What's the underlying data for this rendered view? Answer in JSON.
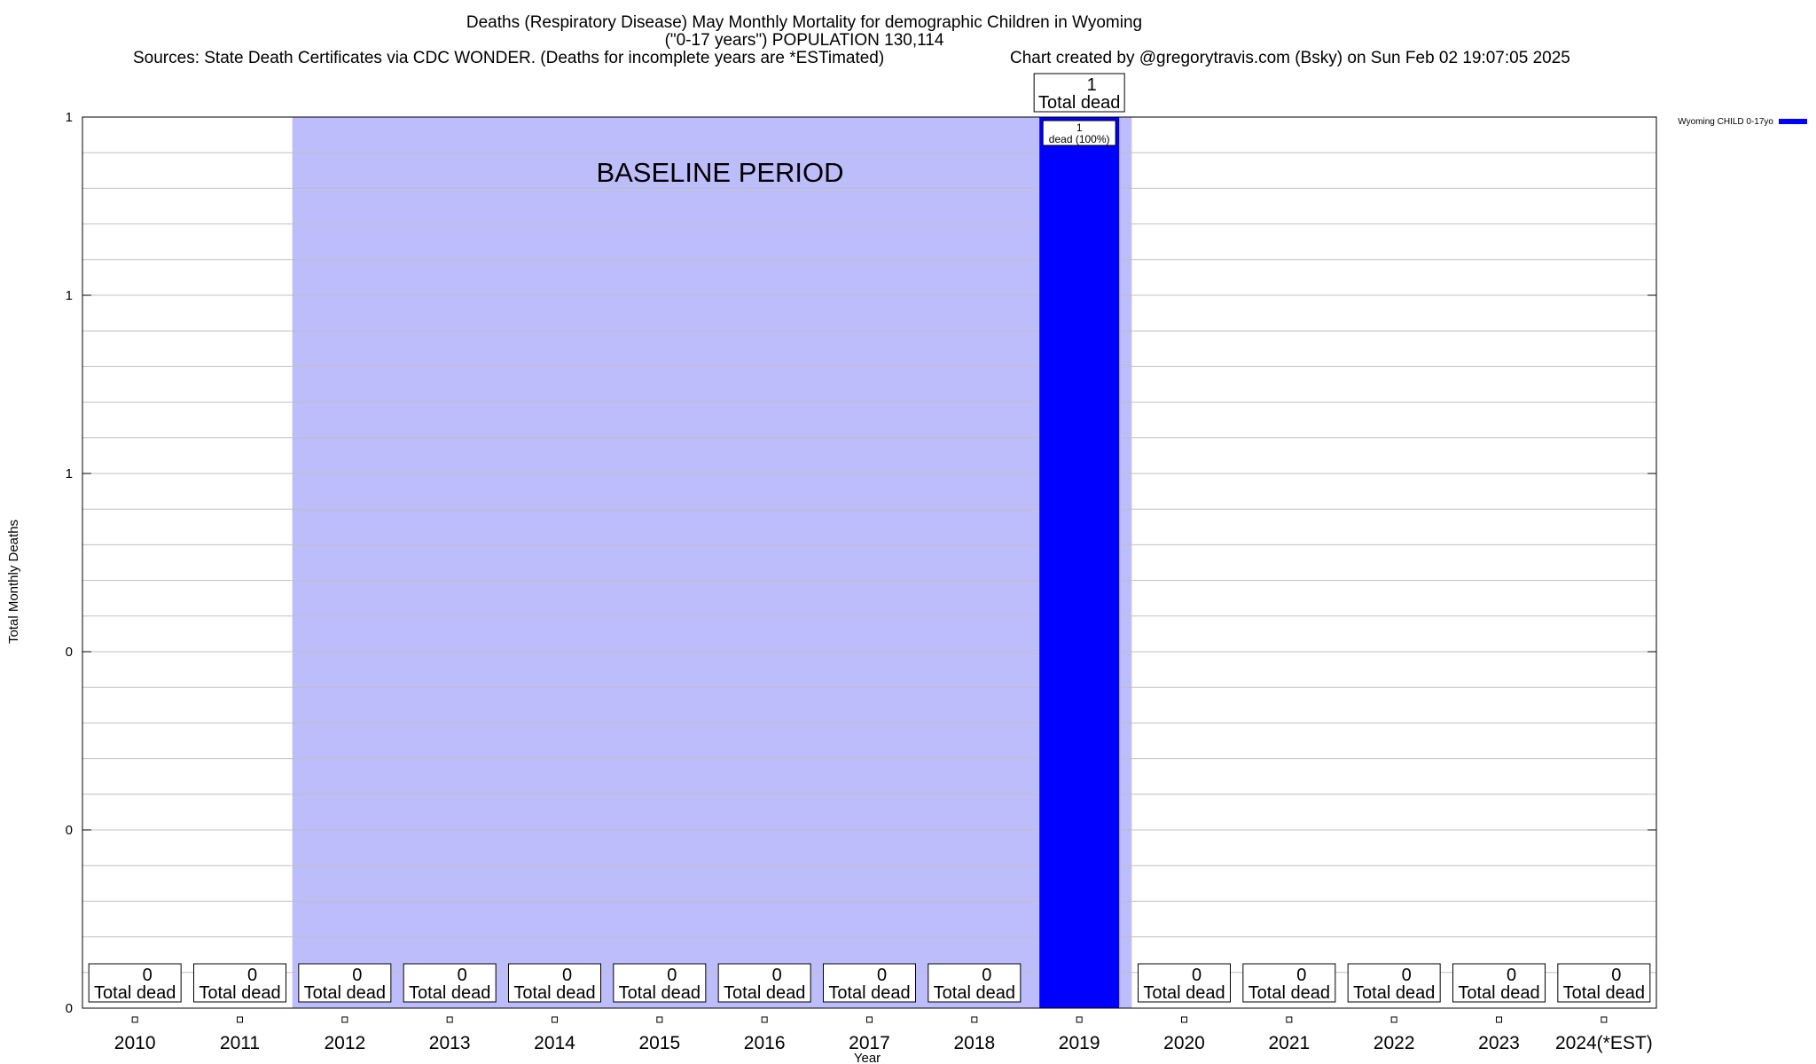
{
  "chart_data": {
    "type": "bar",
    "title_line1": "Deaths (Respiratory Disease) May Monthly Mortality for demographic Children in Wyoming",
    "title_line2": "(\"0-17 years\") POPULATION 130,114",
    "sources": "Sources: State Death Certificates via CDC WONDER. (Deaths for incomplete years are *ESTimated)",
    "credit": "Chart created by @gregorytravis.com (Bsky) on Sun Feb 02 19:07:05 2025",
    "xlabel": "Year",
    "ylabel": "Total Monthly Deaths",
    "categories": [
      "2010",
      "2011",
      "2012",
      "2013",
      "2014",
      "2015",
      "2016",
      "2017",
      "2018",
      "2019",
      "2020",
      "2021",
      "2022",
      "2023",
      "2024(*EST)"
    ],
    "values": [
      0,
      0,
      0,
      0,
      0,
      0,
      0,
      0,
      0,
      1,
      0,
      0,
      0,
      0,
      0
    ],
    "ylim": [
      0,
      1
    ],
    "ytick_values": [
      0,
      0.2,
      0.4,
      0.6,
      0.8,
      1.0
    ],
    "ytick_labels": [
      "0",
      "0",
      "0",
      "1",
      "1",
      "1"
    ],
    "total_label_suffix": "Total dead",
    "bar_label_suffix": "dead (100%)",
    "bar_label_values": [
      "1"
    ],
    "baseline": {
      "label": "BASELINE PERIOD",
      "start": "2012",
      "end": "2019"
    },
    "legend": {
      "label": "Wyoming CHILD 0-17yo",
      "position": "top-right"
    },
    "grid": true,
    "colors": {
      "bar": "#0000ff",
      "baseline": "#bdbdfb",
      "grid": "#c0c0c0"
    }
  }
}
